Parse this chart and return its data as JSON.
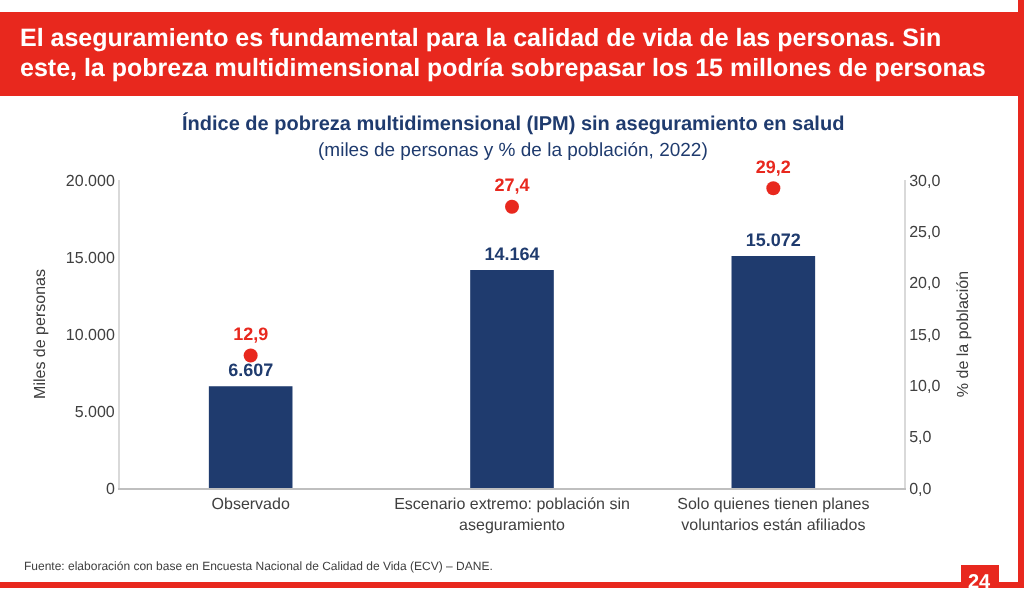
{
  "chart_data": {
    "type": "bar",
    "title": "El aseguramiento es fundamental para la calidad de vida de las personas. Sin este, la pobreza multidimensional podría sobrepasar los 15 millones de personas",
    "subtitle": "Índice de pobreza multidimensional (IPM) sin aseguramiento en salud",
    "annotations": [
      "(miles de personas y % de la población, 2022)",
      "Fuente: elaboración con base en Encuesta Nacional de Calidad de Vida (ECV) – DANE.",
      "24"
    ],
    "ylabel": "Miles de personas",
    "y2label": "% de la población",
    "categories": [
      "Observado",
      "Escenario extremo: población sin aseguramiento",
      "Solo quienes tienen planes voluntarios están afiliados"
    ],
    "series": [
      {
        "color": "#1f3b6e",
        "values": [
          6607,
          14164,
          15072
        ],
        "value_labels": [
          "6.607",
          "14.164",
          "15.072"
        ]
      },
      {
        "type": "scatter",
        "axis": "y2",
        "color": "#e8281e",
        "values": [
          12.9,
          27.4,
          29.2
        ],
        "value_labels": [
          "12,9",
          "27,4",
          "29,2"
        ]
      }
    ],
    "marker": "circle",
    "ylim": [
      0,
      20000
    ],
    "yticks": [
      {
        "value": 0,
        "label": "0"
      },
      {
        "value": 5000,
        "label": "5.000"
      },
      {
        "value": 10000,
        "label": "10.000"
      },
      {
        "value": 15000,
        "label": "15.000"
      },
      {
        "value": 20000,
        "label": "20.000"
      }
    ],
    "y2lim": [
      0,
      30
    ],
    "y2ticks": [
      {
        "value": 0,
        "label": "0,0"
      },
      {
        "value": 5,
        "label": "5,0"
      },
      {
        "value": 10,
        "label": "10,0"
      },
      {
        "value": 15,
        "label": "15,0"
      },
      {
        "value": 20,
        "label": "20,0"
      },
      {
        "value": 25,
        "label": "25,0"
      },
      {
        "value": 30,
        "label": "30,0"
      }
    ],
    "grid": false,
    "legend": false
  }
}
